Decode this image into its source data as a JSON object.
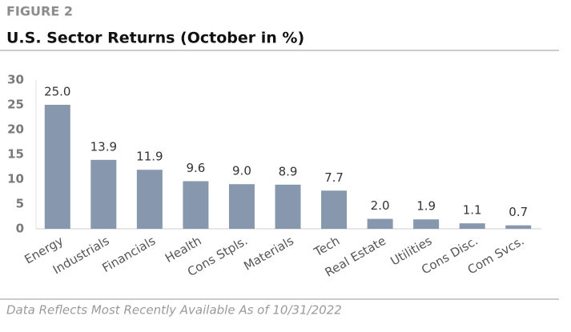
{
  "chart_data": {
    "type": "bar",
    "figure_label": "FIGURE 2",
    "title": "U.S. Sector Returns (October in %)",
    "footnote": "Data Reflects Most Recently Available As of 10/31/2022",
    "categories": [
      "Energy",
      "Industrials",
      "Financials",
      "Health",
      "Cons Stpls.",
      "Materials",
      "Tech",
      "Real Estate",
      "Utilities",
      "Cons Disc.",
      "Com Svcs."
    ],
    "values": [
      25.0,
      13.9,
      11.9,
      9.6,
      9.0,
      8.9,
      7.7,
      2.0,
      1.9,
      1.1,
      0.7
    ],
    "value_labels": [
      "25.0",
      "13.9",
      "11.9",
      "9.6",
      "9.0",
      "8.9",
      "7.7",
      "2.0",
      "1.9",
      "1.1",
      "0.7"
    ],
    "color": "#8797ad",
    "ylim": [
      0,
      30
    ],
    "yticks": [
      0,
      5,
      10,
      15,
      20,
      25,
      30
    ],
    "grid": false
  }
}
